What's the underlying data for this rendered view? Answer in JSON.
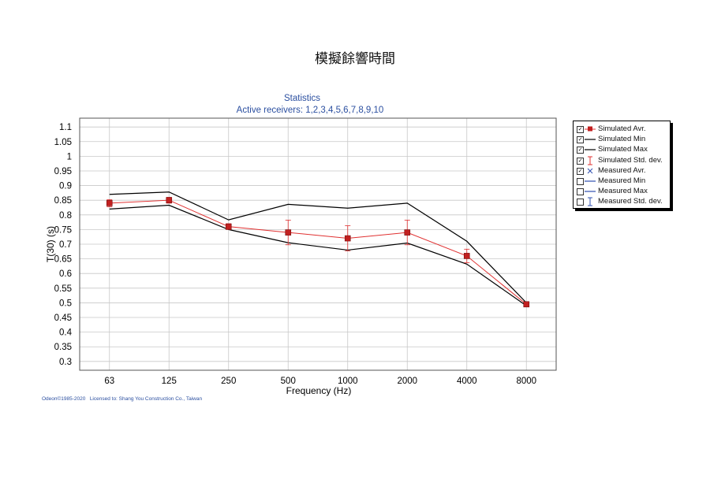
{
  "page_title": "模擬餘響時間",
  "footer": {
    "copyright": "Odeon©1985-2020",
    "license": "Licensed to: Shang You Construction Co., Taiwan"
  },
  "legend": {
    "items": [
      {
        "label": "Simulated Avr.",
        "checked": true,
        "symbol": "red-square-line"
      },
      {
        "label": "Simulated Min",
        "checked": true,
        "symbol": "black-line"
      },
      {
        "label": "Simulated Max",
        "checked": true,
        "symbol": "black-line"
      },
      {
        "label": "Simulated Std. dev.",
        "checked": true,
        "symbol": "red-errorbar"
      },
      {
        "label": "Measured Avr.",
        "checked": true,
        "symbol": "blue-cross"
      },
      {
        "label": "Measured Min",
        "checked": false,
        "symbol": "blue-line"
      },
      {
        "label": "Measured Max",
        "checked": false,
        "symbol": "blue-line"
      },
      {
        "label": "Measured Std. dev.",
        "checked": false,
        "symbol": "blue-errorbar"
      }
    ]
  },
  "colors": {
    "simulated_avr": "#e03030",
    "simulated_marker": "#c22020",
    "simulated_minmax": "#000000",
    "measured": "#3050b0",
    "title_blue": "#2b4fa0",
    "grid": "#c8c8c8"
  },
  "chart_data": {
    "type": "line",
    "title": "Statistics",
    "subtitle": "Active receivers: 1,2,3,4,5,6,7,8,9,10",
    "xlabel": "Frequency (Hz)",
    "ylabel": "T(30) (s)",
    "categories": [
      "63",
      "125",
      "250",
      "500",
      "1000",
      "2000",
      "4000",
      "8000"
    ],
    "yticks": [
      "0.3",
      "0.35",
      "0.4",
      "0.45",
      "0.5",
      "0.55",
      "0.6",
      "0.65",
      "0.7",
      "0.75",
      "0.8",
      "0.85",
      "0.9",
      "0.95",
      "1",
      "1.05",
      "1.1"
    ],
    "ylim": [
      0.27,
      1.13
    ],
    "grid": true,
    "legend_position": "right",
    "series": [
      {
        "name": "Simulated Avr.",
        "values": [
          0.84,
          0.85,
          0.76,
          0.74,
          0.72,
          0.74,
          0.66,
          0.495
        ]
      },
      {
        "name": "Simulated Min",
        "values": [
          0.82,
          0.833,
          0.75,
          0.705,
          0.68,
          0.704,
          0.632,
          0.49
        ]
      },
      {
        "name": "Simulated Max",
        "values": [
          0.87,
          0.878,
          0.783,
          0.836,
          0.823,
          0.84,
          0.71,
          0.5
        ]
      },
      {
        "name": "Simulated Std. dev.",
        "values": [
          0.012,
          0.01,
          0.01,
          0.042,
          0.043,
          0.042,
          0.023,
          0.006
        ]
      }
    ]
  }
}
